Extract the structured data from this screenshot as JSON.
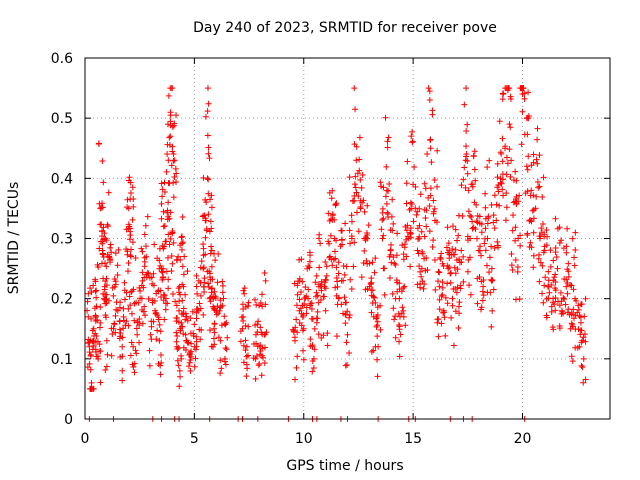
{
  "chart_data": {
    "type": "scatter",
    "title": "Day 240 of 2023, SRMTID for receiver pove",
    "xlabel": "GPS time / hours",
    "ylabel": "SRMTID / TECUs",
    "xlim": [
      0,
      24
    ],
    "ylim": [
      0,
      0.6
    ],
    "x_ticks": [
      0,
      5,
      10,
      15,
      20
    ],
    "x_tick_labels": [
      "0",
      "5",
      "10",
      "15",
      "20"
    ],
    "y_ticks": [
      0,
      0.1,
      0.2,
      0.3,
      0.4,
      0.5,
      0.6
    ],
    "y_tick_labels": [
      "0",
      "0.1",
      "0.2",
      "0.3",
      "0.4",
      "0.5",
      "0.6"
    ],
    "grid": true,
    "marker": "+",
    "color": "#ff0000",
    "series": [
      {
        "name": "SRMTID",
        "x": [
          0.2,
          0.3,
          0.4,
          0.5,
          0.6,
          0.7,
          0.8,
          0.9,
          1.0,
          1.1,
          1.3,
          1.5,
          1.7,
          1.9,
          2.0,
          2.1,
          2.2,
          2.4,
          2.6,
          2.8,
          3.0,
          3.2,
          3.4,
          3.5,
          3.6,
          3.7,
          3.8,
          3.9,
          4.0,
          4.1,
          4.2,
          4.3,
          4.4,
          4.5,
          4.6,
          4.8,
          5.0,
          5.2,
          5.4,
          5.5,
          5.6,
          5.7,
          5.8,
          5.9,
          6.0,
          6.2,
          6.4,
          7.2,
          7.4,
          7.8,
          8.0,
          8.2,
          9.6,
          9.8,
          10.0,
          10.2,
          10.4,
          10.6,
          10.8,
          11.0,
          11.2,
          11.4,
          11.6,
          11.8,
          12.0,
          12.2,
          12.4,
          12.6,
          12.8,
          13.0,
          13.2,
          13.4,
          13.6,
          13.8,
          14.0,
          14.2,
          14.4,
          14.6,
          14.8,
          15.0,
          15.2,
          15.4,
          15.6,
          15.8,
          16.0,
          16.2,
          16.4,
          16.6,
          16.8,
          17.0,
          17.2,
          17.4,
          17.6,
          17.8,
          18.0,
          18.2,
          18.4,
          18.6,
          18.8,
          19.0,
          19.2,
          19.4,
          19.6,
          19.8,
          20.0,
          20.2,
          20.4,
          20.6,
          20.8,
          21.0,
          21.2,
          21.4,
          21.6,
          21.8,
          22.0,
          22.2,
          22.4,
          22.6,
          22.8
        ],
        "y": [
          0.12,
          0.06,
          0.15,
          0.17,
          0.1,
          0.35,
          0.28,
          0.22,
          0.13,
          0.27,
          0.15,
          0.18,
          0.12,
          0.21,
          0.35,
          0.27,
          0.12,
          0.16,
          0.2,
          0.24,
          0.14,
          0.18,
          0.13,
          0.25,
          0.32,
          0.2,
          0.36,
          0.47,
          0.31,
          0.43,
          0.12,
          0.18,
          0.1,
          0.22,
          0.14,
          0.11,
          0.12,
          0.18,
          0.25,
          0.33,
          0.4,
          0.2,
          0.28,
          0.15,
          0.18,
          0.13,
          0.1,
          0.15,
          0.12,
          0.1,
          0.12,
          0.14,
          0.13,
          0.18,
          0.15,
          0.2,
          0.12,
          0.16,
          0.22,
          0.18,
          0.27,
          0.3,
          0.2,
          0.23,
          0.14,
          0.3,
          0.43,
          0.35,
          0.3,
          0.22,
          0.17,
          0.12,
          0.3,
          0.38,
          0.26,
          0.2,
          0.17,
          0.22,
          0.3,
          0.39,
          0.28,
          0.25,
          0.32,
          0.45,
          0.33,
          0.22,
          0.18,
          0.25,
          0.2,
          0.21,
          0.28,
          0.43,
          0.3,
          0.36,
          0.28,
          0.22,
          0.3,
          0.25,
          0.33,
          0.4,
          0.45,
          0.49,
          0.36,
          0.3,
          0.54,
          0.42,
          0.38,
          0.35,
          0.3,
          0.28,
          0.22,
          0.2,
          0.25,
          0.18,
          0.22,
          0.15,
          0.2,
          0.12,
          0.1
        ]
      }
    ],
    "zero_points_x": [
      0.2,
      1.3,
      3.1,
      3.5,
      4.1,
      4.3,
      5.7,
      7.0,
      7.2,
      7.9,
      9.3,
      10.4,
      10.6,
      11.7,
      12.0,
      13.4,
      14.8,
      15.1,
      16.7,
      17.3,
      17.7,
      20.1
    ]
  }
}
